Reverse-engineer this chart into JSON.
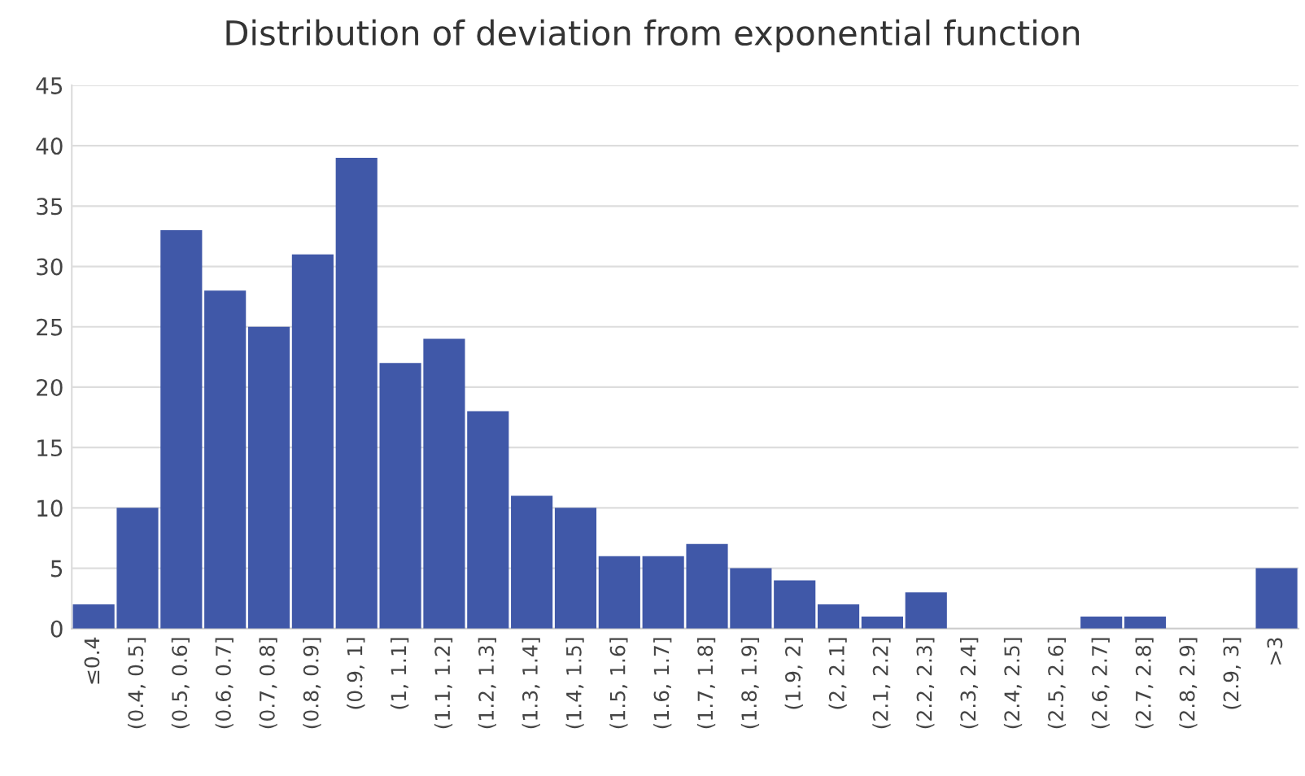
{
  "chart_data": {
    "type": "bar",
    "title": "Distribution of deviation from exponential function",
    "categories": [
      "≤0.4",
      "(0.4, 0.5]",
      "(0.5, 0.6]",
      "(0.6, 0.7]",
      "(0.7, 0.8]",
      "(0.8, 0.9]",
      "(0.9, 1]",
      "(1, 1.1]",
      "(1.1, 1.2]",
      "(1.2, 1.3]",
      "(1.3, 1.4]",
      "(1.4, 1.5]",
      "(1.5, 1.6]",
      "(1.6, 1.7]",
      "(1.7, 1.8]",
      "(1.8, 1.9]",
      "(1.9, 2]",
      "(2, 2.1]",
      "(2.1, 2.2]",
      "(2.2, 2.3]",
      "(2.3, 2.4]",
      "(2.4, 2.5]",
      "(2.5, 2.6]",
      "(2.6, 2.7]",
      "(2.7, 2.8]",
      "(2.8, 2.9]",
      "(2.9, 3]",
      ">3"
    ],
    "values": [
      2,
      10,
      33,
      28,
      25,
      31,
      39,
      22,
      24,
      18,
      11,
      10,
      6,
      6,
      7,
      5,
      4,
      2,
      1,
      3,
      0,
      0,
      0,
      1,
      1,
      0,
      0,
      5
    ],
    "color": "#4058a8",
    "ylim": [
      0,
      45
    ],
    "yticks": [
      0,
      5,
      10,
      15,
      20,
      25,
      30,
      35,
      40,
      45
    ],
    "grid": "y"
  }
}
